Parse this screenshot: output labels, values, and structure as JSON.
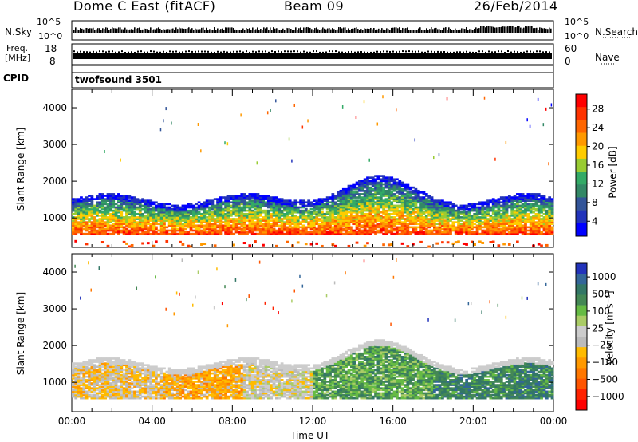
{
  "header": {
    "station": "Dome C East (fitACF)",
    "beam": "Beam 09",
    "date": "26/Feb/2014"
  },
  "top_panels": {
    "nsky_label": "N.Sky",
    "nsky_ticks": [
      "10^5",
      "10^0"
    ],
    "nsearch_label": "N.Search",
    "nsearch_ticks": [
      "10^5",
      "10^0"
    ],
    "freq_label_line1": "Freq.",
    "freq_label_line2": "[MHz]",
    "freq_ticks": [
      "18",
      "8"
    ],
    "nave_label": "Nave",
    "nave_ticks": [
      "60",
      "0"
    ],
    "cpid_label": "CPID",
    "cpid_value": "twofsound 3501"
  },
  "chart_data": [
    {
      "type": "heatmap",
      "name": "power",
      "ylabel": "Slant Range [km]",
      "yticks": [
        1000,
        2000,
        3000,
        4000
      ],
      "ylim": [
        200,
        4500
      ],
      "xlim": [
        0,
        24
      ],
      "colorbar": {
        "label": "Power [dB]",
        "ticks": [
          "28",
          "24",
          "20",
          "16",
          "12",
          "8",
          "4"
        ],
        "colors": [
          "#ff0000",
          "#ff3300",
          "#ff6600",
          "#ff9900",
          "#ffcc00",
          "#99cc33",
          "#33aa66",
          "#338866",
          "#335599",
          "#2233bb",
          "#0000ff"
        ]
      }
    },
    {
      "type": "heatmap",
      "name": "velocity",
      "ylabel": "Slant Range [km]",
      "yticks": [
        1000,
        2000,
        3000,
        4000
      ],
      "ylim": [
        200,
        4500
      ],
      "xlim": [
        0,
        24
      ],
      "xticks": [
        "00:00",
        "04:00",
        "08:00",
        "12:00",
        "16:00",
        "20:00",
        "00:00"
      ],
      "xlabel": "Time UT",
      "colorbar": {
        "label": "Velocity [m s⁻¹]",
        "ticks": [
          "1000",
          "500",
          "100",
          "25",
          "−25",
          "−100",
          "−500",
          "−1000"
        ],
        "colors": [
          "#2233bb",
          "#336699",
          "#337766",
          "#448855",
          "#66bb44",
          "#aacc66",
          "#cccccc",
          "#bbbbbb",
          "#ffbb00",
          "#ff9900",
          "#ff7700",
          "#ff5500",
          "#ff2200",
          "#ff0000"
        ]
      }
    }
  ]
}
